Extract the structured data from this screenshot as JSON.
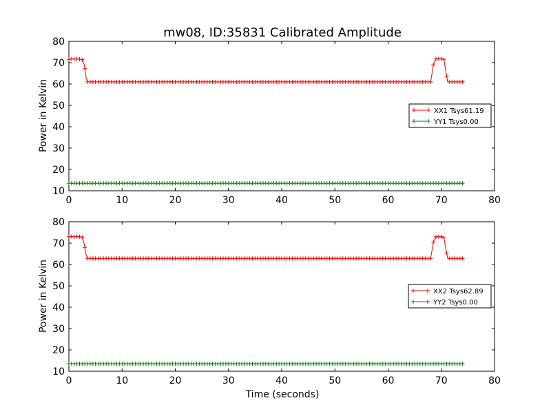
{
  "title": "mw08, ID:35831 Calibrated Amplitude",
  "colors": {
    "xx": "#ff0000",
    "yy": "#008000"
  },
  "chart_data": [
    {
      "type": "line",
      "marker": "+",
      "xlabel": "",
      "ylabel": "Power in Kelvin",
      "xlim": [
        0,
        80
      ],
      "ylim": [
        10,
        80
      ],
      "xticks": [
        0,
        10,
        20,
        30,
        40,
        50,
        60,
        70,
        80
      ],
      "yticks": [
        10,
        20,
        30,
        40,
        50,
        60,
        70,
        80
      ],
      "legend_position": "right",
      "series": [
        {
          "name": "XX1 Tsys61.19",
          "color": "#ff0000",
          "points": [
            [
              0.0,
              71.5
            ],
            [
              0.5,
              71.8
            ],
            [
              1.0,
              71.7
            ],
            [
              1.5,
              71.8
            ],
            [
              2.0,
              71.6
            ],
            [
              2.5,
              71.4
            ],
            [
              2.9,
              69.0
            ],
            [
              3.2,
              63.5
            ],
            [
              3.5,
              61.0
            ],
            [
              4.0,
              61.0
            ],
            [
              5.0,
              61.0
            ],
            [
              10.0,
              61.0
            ],
            [
              20.0,
              61.0
            ],
            [
              30.0,
              61.0
            ],
            [
              40.0,
              61.0
            ],
            [
              50.0,
              61.0
            ],
            [
              60.0,
              61.0
            ],
            [
              67.0,
              61.0
            ],
            [
              68.0,
              61.0
            ],
            [
              68.5,
              69.0
            ],
            [
              69.0,
              71.8
            ],
            [
              69.5,
              71.8
            ],
            [
              70.0,
              71.8
            ],
            [
              70.5,
              71.5
            ],
            [
              70.8,
              66.5
            ],
            [
              71.2,
              61.0
            ],
            [
              72.0,
              61.0
            ],
            [
              73.0,
              61.0
            ],
            [
              74.2,
              61.0
            ]
          ]
        },
        {
          "name": "YY1 Tsys0.00",
          "color": "#008000",
          "points": [
            [
              0.0,
              13.5
            ],
            [
              74.2,
              13.5
            ]
          ]
        }
      ]
    },
    {
      "type": "line",
      "marker": "+",
      "xlabel": "Time (seconds)",
      "ylabel": "Power in Kelvin",
      "xlim": [
        0,
        80
      ],
      "ylim": [
        10,
        80
      ],
      "xticks": [
        0,
        10,
        20,
        30,
        40,
        50,
        60,
        70,
        80
      ],
      "yticks": [
        10,
        20,
        30,
        40,
        50,
        60,
        70,
        80
      ],
      "legend_position": "right",
      "series": [
        {
          "name": "XX2 Tsys62.89",
          "color": "#ff0000",
          "points": [
            [
              0.0,
              73.0
            ],
            [
              0.5,
              73.1
            ],
            [
              1.0,
              73.0
            ],
            [
              1.5,
              73.1
            ],
            [
              2.0,
              73.0
            ],
            [
              2.5,
              72.8
            ],
            [
              2.9,
              69.5
            ],
            [
              3.2,
              65.0
            ],
            [
              3.5,
              62.8
            ],
            [
              4.0,
              62.8
            ],
            [
              5.0,
              62.8
            ],
            [
              10.0,
              62.8
            ],
            [
              20.0,
              62.8
            ],
            [
              30.0,
              62.8
            ],
            [
              40.0,
              62.8
            ],
            [
              50.0,
              62.8
            ],
            [
              60.0,
              62.8
            ],
            [
              67.0,
              62.8
            ],
            [
              68.0,
              62.8
            ],
            [
              68.5,
              70.5
            ],
            [
              69.0,
              73.0
            ],
            [
              69.5,
              73.0
            ],
            [
              70.0,
              73.0
            ],
            [
              70.5,
              72.5
            ],
            [
              70.8,
              68.0
            ],
            [
              71.2,
              62.8
            ],
            [
              72.0,
              62.8
            ],
            [
              73.0,
              62.8
            ],
            [
              74.2,
              62.8
            ]
          ]
        },
        {
          "name": "YY2 Tsys0.00",
          "color": "#008000",
          "points": [
            [
              0.0,
              13.5
            ],
            [
              74.2,
              13.5
            ]
          ]
        }
      ]
    }
  ]
}
